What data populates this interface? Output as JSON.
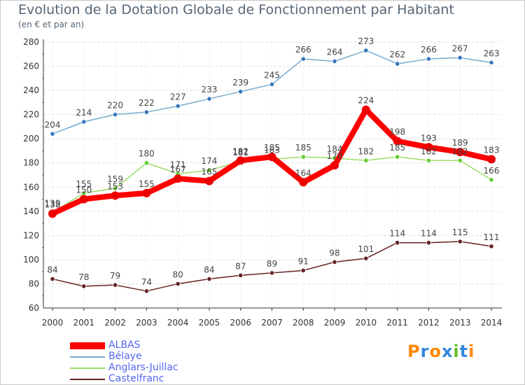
{
  "chart_data": {
    "type": "line",
    "title": "Evolution de la Dotation Globale de Fonctionnement par Habitant",
    "subtitle": "(en € et par an)",
    "xlabel": "",
    "ylabel": "",
    "ylim": [
      60,
      280
    ],
    "yticks": [
      60,
      80,
      100,
      120,
      140,
      160,
      180,
      200,
      220,
      240,
      260,
      280
    ],
    "x": [
      "2000",
      "2001",
      "2002",
      "2003",
      "2004",
      "2005",
      "2006",
      "2007",
      "2008",
      "2009",
      "2010",
      "2011",
      "2012",
      "2013",
      "2014"
    ],
    "grid": "horizontal dashed",
    "legend_position": "bottom-left",
    "series": [
      {
        "name": "Bélaye",
        "color": "#77aacc",
        "marker": "#3377bb",
        "values": [
          204,
          214,
          220,
          222,
          227,
          233,
          239,
          245,
          266,
          264,
          273,
          262,
          266,
          267,
          263
        ]
      },
      {
        "name": "Anglars-Juillac",
        "color": "#99dd66",
        "marker": "#66cc33",
        "values": [
          139,
          155,
          159,
          180,
          171,
          174,
          181,
          183,
          185,
          184,
          182,
          185,
          182,
          182,
          166
        ]
      },
      {
        "name": "ALBAS",
        "color": "#ff0000",
        "marker": "#ee0000",
        "values": [
          138,
          150,
          153,
          155,
          167,
          165,
          182,
          185,
          164,
          178,
          224,
          198,
          193,
          189,
          183
        ]
      },
      {
        "name": "Castelfranc",
        "color": "#662222",
        "marker": "#662222",
        "values": [
          84,
          78,
          79,
          74,
          80,
          84,
          87,
          89,
          91,
          98,
          101,
          114,
          114,
          115,
          111
        ]
      }
    ]
  },
  "legend": {
    "items": [
      {
        "label": "ALBAS",
        "color": "#ff0000"
      },
      {
        "label": "Bélaye",
        "color": "#77aacc"
      },
      {
        "label": "Anglars-Juillac",
        "color": "#99dd66"
      },
      {
        "label": "Castelfranc",
        "color": "#662222"
      }
    ]
  },
  "logo": {
    "text": "Proxiti",
    "colors": [
      "#ff8800",
      "#3388dd",
      "#ff8800",
      "#3388dd",
      "#66bb22",
      "#3388dd",
      "#ff8800"
    ]
  }
}
